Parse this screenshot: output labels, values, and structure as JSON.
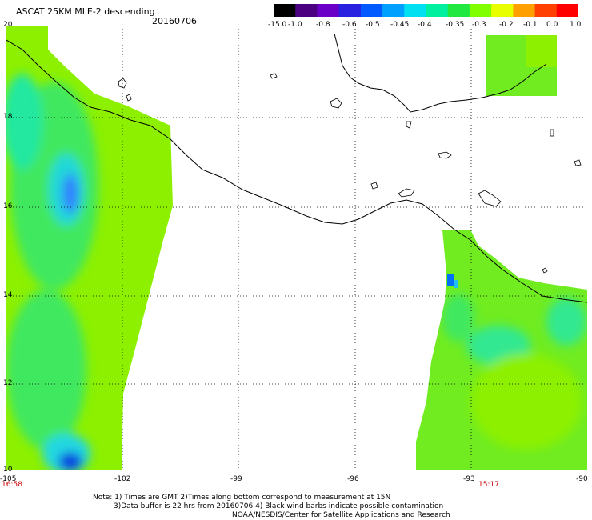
{
  "header": {
    "title": "ASCAT 25KM MLE-2 descending",
    "date": "20160706"
  },
  "colorbar": {
    "labels": [
      "-15.0",
      "-1.0",
      "-0.8",
      "-0.6",
      "-0.5",
      "-0.45",
      "-0.4",
      "-0.35",
      "-0.3",
      "-0.2",
      "-0.1",
      "0.0",
      "1.0"
    ],
    "colors": [
      "#000000",
      "#4b0082",
      "#6a00c8",
      "#2a20e0",
      "#005aff",
      "#00a0ff",
      "#00e0f0",
      "#00f0a0",
      "#20e840",
      "#80ff00",
      "#e8ff00",
      "#ffa000",
      "#ff4000",
      "#ff0000"
    ]
  },
  "axes": {
    "lat_labels": [
      "20",
      "18",
      "16",
      "14",
      "12",
      "10"
    ],
    "lon_labels": [
      "-105",
      "-102",
      "-99",
      "-96",
      "-93",
      "-90"
    ]
  },
  "times": {
    "left": "16:58",
    "right": "15:17"
  },
  "notes": {
    "line1": "Note: 1) Times are GMT 2)Times along bottom correspond to measurement at 15N",
    "line2": "3)Data buffer is 22 hrs from 20160706 4) Black wind barbs indicate possible contamination",
    "line3": "NOAA/NESDIS/Center for Satellite Applications and Research"
  }
}
